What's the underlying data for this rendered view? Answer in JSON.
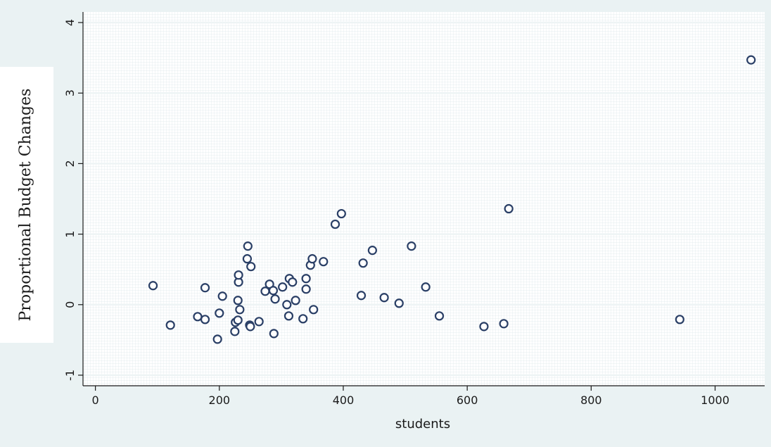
{
  "chart_data": {
    "type": "scatter",
    "xlabel": "students",
    "ylabel": "Proportional Budget Changes",
    "xlim": [
      -20,
      1080
    ],
    "ylim": [
      -1.15,
      4.15
    ],
    "xticks": [
      0,
      200,
      400,
      600,
      800,
      1000
    ],
    "yticks": [
      -1,
      0,
      1,
      2,
      3,
      4
    ],
    "grid": true,
    "series": [
      {
        "marker": "hollow-circle",
        "color": "#2a3f66",
        "points": [
          [
            93,
            0.27
          ],
          [
            121,
            -0.29
          ],
          [
            165,
            -0.17
          ],
          [
            177,
            -0.21
          ],
          [
            177,
            0.24
          ],
          [
            197,
            -0.49
          ],
          [
            200,
            -0.12
          ],
          [
            205,
            0.12
          ],
          [
            225,
            -0.38
          ],
          [
            226,
            -0.25
          ],
          [
            230,
            -0.22
          ],
          [
            230,
            0.06
          ],
          [
            231,
            0.32
          ],
          [
            231,
            0.42
          ],
          [
            233,
            -0.07
          ],
          [
            245,
            0.65
          ],
          [
            246,
            0.83
          ],
          [
            249,
            -0.29
          ],
          [
            250,
            -0.31
          ],
          [
            251,
            0.54
          ],
          [
            264,
            -0.24
          ],
          [
            274,
            0.19
          ],
          [
            281,
            0.29
          ],
          [
            287,
            0.2
          ],
          [
            288,
            -0.41
          ],
          [
            290,
            0.08
          ],
          [
            302,
            0.25
          ],
          [
            309,
            0.0
          ],
          [
            312,
            -0.16
          ],
          [
            313,
            0.37
          ],
          [
            318,
            0.32
          ],
          [
            323,
            0.06
          ],
          [
            335,
            -0.2
          ],
          [
            340,
            0.37
          ],
          [
            340,
            0.22
          ],
          [
            347,
            0.56
          ],
          [
            350,
            0.65
          ],
          [
            352,
            -0.07
          ],
          [
            368,
            0.61
          ],
          [
            387,
            1.14
          ],
          [
            397,
            1.29
          ],
          [
            429,
            0.13
          ],
          [
            432,
            0.59
          ],
          [
            447,
            0.77
          ],
          [
            466,
            0.1
          ],
          [
            490,
            0.02
          ],
          [
            510,
            0.83
          ],
          [
            533,
            0.25
          ],
          [
            555,
            -0.16
          ],
          [
            627,
            -0.31
          ],
          [
            659,
            -0.27
          ],
          [
            667,
            1.36
          ],
          [
            943,
            -0.21
          ],
          [
            1058,
            3.47
          ]
        ]
      }
    ]
  }
}
